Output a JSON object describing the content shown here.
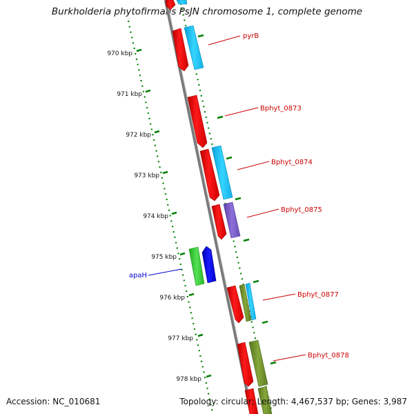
{
  "title": "Burkholderia phytofirmans PsJN chromosome 1, complete genome",
  "footer": {
    "accession": "Accession: NC_010681",
    "summary": "Topology: circular; Length: 4,467,537 bp; Genes: 3,987"
  },
  "ticks": [
    {
      "label": "970 kbp"
    },
    {
      "label": "971 kbp"
    },
    {
      "label": "972 kbp"
    },
    {
      "label": "973 kbp"
    },
    {
      "label": "974 kbp"
    },
    {
      "label": "975 kbp"
    },
    {
      "label": "976 kbp"
    },
    {
      "label": "977 kbp"
    },
    {
      "label": "978 kbp"
    }
  ],
  "gene_labels": [
    {
      "name": "pyrB",
      "color": "#cc0000"
    },
    {
      "name": "Bphyt_0873",
      "color": "#cc0000"
    },
    {
      "name": "Bphyt_0874",
      "color": "#cc0000"
    },
    {
      "name": "Bphyt_0875",
      "color": "#cc0000"
    },
    {
      "name": "apaH",
      "color": "#0000cc"
    },
    {
      "name": "Bphyt_0877",
      "color": "#cc0000"
    },
    {
      "name": "Bphyt_0878",
      "color": "#cc0000"
    }
  ],
  "colors": {
    "cds": "#ff0000",
    "gene_cyan": "#19c8f5",
    "gene_purple": "#7b5cc8",
    "gene_green": "#33cc33",
    "gene_blue": "#0000ee",
    "gene_olive": "#6b8e23",
    "dotted_ring": "#008000",
    "backbone": "#808080"
  }
}
